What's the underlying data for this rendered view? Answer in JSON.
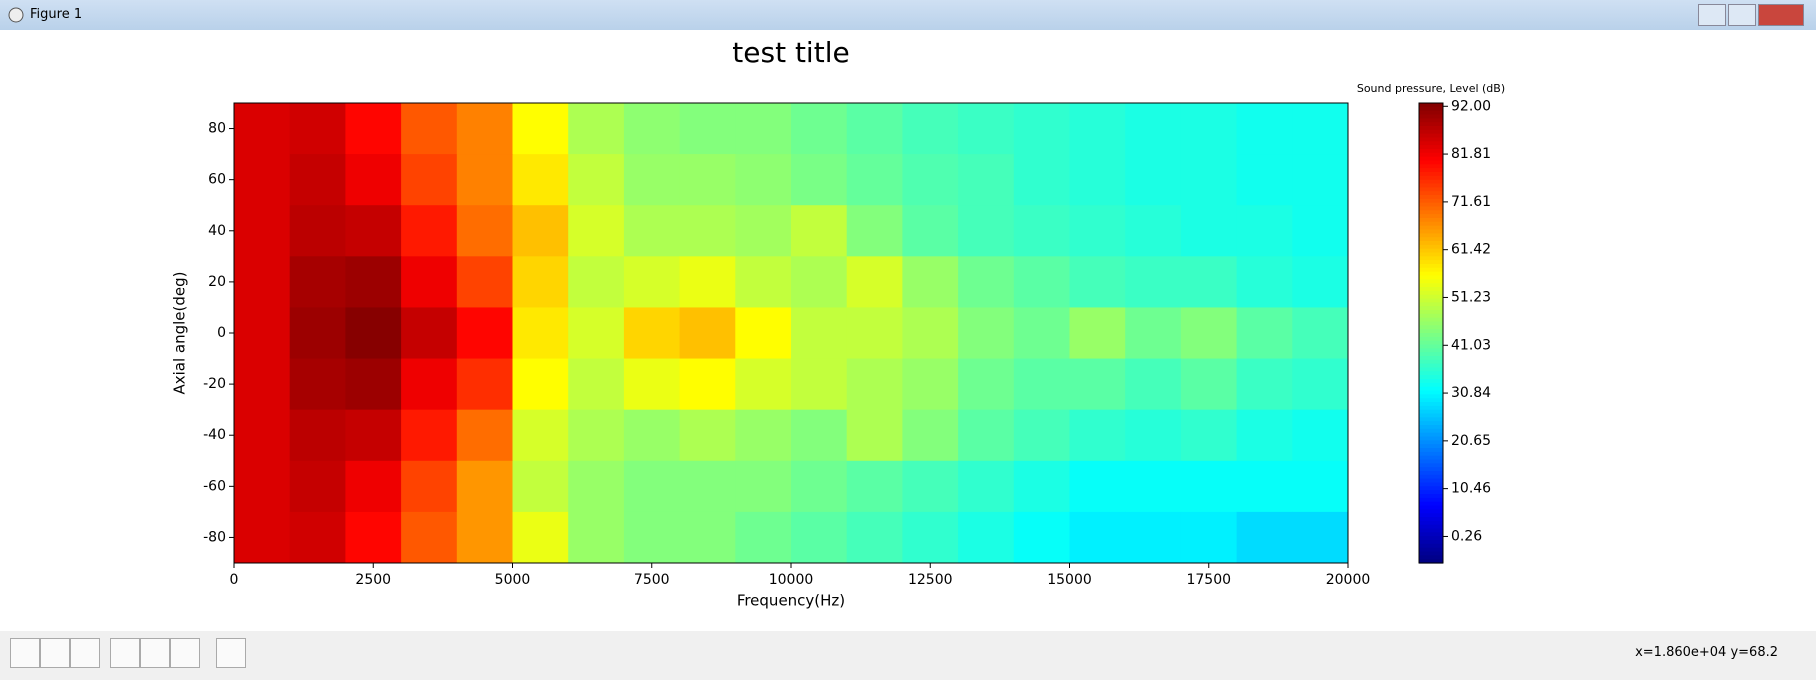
{
  "window_title": "Figure 1",
  "status": "x=1.860e+04 y=68.2",
  "chart_data": {
    "type": "heatmap",
    "title": "test title",
    "x_label": "Frequency(Hz)",
    "y_label": "Axial angle(deg)",
    "xlim": [
      0,
      20000
    ],
    "ylim": [
      -90,
      90
    ],
    "xticks": [
      0,
      2500,
      5000,
      7500,
      10000,
      12500,
      15000,
      17500,
      20000
    ],
    "yticks": [
      -80,
      -60,
      -40,
      -20,
      0,
      20,
      40,
      60,
      80
    ],
    "x_bins": [
      0,
      1000,
      2000,
      3000,
      4000,
      5000,
      6000,
      7000,
      8000,
      9000,
      10000,
      11000,
      12000,
      13000,
      14000,
      15000,
      16000,
      17000,
      18000,
      19000,
      20000
    ],
    "y_bins": [
      90,
      70,
      50,
      30,
      10,
      -10,
      -30,
      -50,
      -70,
      -90
    ],
    "z": [
      [
        84,
        85,
        80,
        72,
        68,
        56,
        48,
        45,
        44,
        44,
        42,
        40,
        38,
        37,
        36,
        35,
        34,
        34,
        33,
        33
      ],
      [
        84,
        86,
        82,
        74,
        68,
        58,
        50,
        46,
        46,
        45,
        43,
        41,
        39,
        38,
        36,
        35,
        34,
        34,
        33,
        33
      ],
      [
        84,
        87,
        86,
        78,
        70,
        62,
        52,
        48,
        48,
        47,
        50,
        44,
        40,
        38,
        37,
        36,
        35,
        34,
        34,
        33
      ],
      [
        84,
        89,
        90,
        82,
        74,
        60,
        50,
        52,
        54,
        50,
        48,
        52,
        46,
        42,
        40,
        38,
        37,
        37,
        35,
        34
      ],
      [
        84,
        90,
        92,
        86,
        80,
        58,
        52,
        60,
        62,
        56,
        50,
        50,
        48,
        44,
        42,
        46,
        42,
        44,
        40,
        38
      ],
      [
        84,
        89,
        90,
        82,
        76,
        56,
        50,
        54,
        56,
        52,
        50,
        48,
        46,
        42,
        40,
        40,
        38,
        40,
        37,
        36
      ],
      [
        84,
        87,
        86,
        78,
        70,
        52,
        48,
        46,
        48,
        46,
        44,
        48,
        44,
        40,
        38,
        36,
        35,
        36,
        34,
        33
      ],
      [
        84,
        86,
        82,
        74,
        66,
        50,
        46,
        44,
        44,
        44,
        42,
        40,
        38,
        36,
        34,
        32,
        32,
        32,
        32,
        32
      ],
      [
        84,
        85,
        80,
        72,
        66,
        54,
        46,
        44,
        44,
        42,
        40,
        38,
        36,
        34,
        32,
        30,
        30,
        30,
        28,
        28
      ]
    ],
    "colorbar": {
      "label": "Sound pressure, Level (dB)",
      "lim": [
        -5.4,
        92.7
      ],
      "ticks": [
        0.26,
        10.46,
        20.65,
        30.84,
        41.03,
        51.23,
        61.42,
        71.61,
        81.81,
        {
          "value": 92,
          "label": "92.00"
        }
      ]
    }
  }
}
